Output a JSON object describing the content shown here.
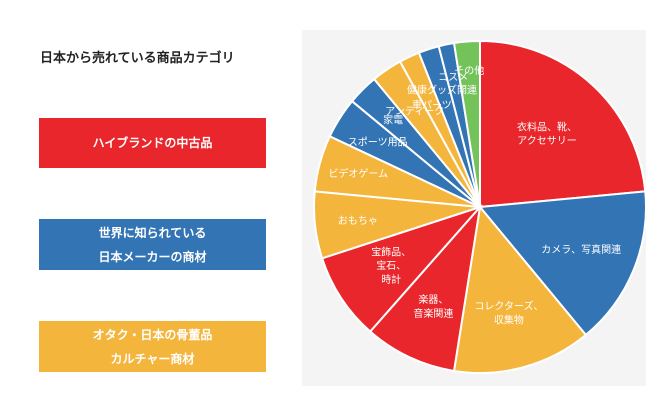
{
  "title": "日本から売れている商品カテゴリ",
  "legend_boxes": [
    {
      "lines": [
        "ハイブランドの中古品"
      ],
      "color": "#e8262b"
    },
    {
      "lines": [
        "世界に知られている",
        "日本メーカーの商材"
      ],
      "color": "#3374b4"
    },
    {
      "lines": [
        "オタク・日本の骨董品",
        "カルチャー商材"
      ],
      "color": "#f4b53c"
    }
  ],
  "chart_data": {
    "type": "pie",
    "title": "",
    "start_angle_deg": 0,
    "direction": "clockwise",
    "slices": [
      {
        "label": [
          "衣料品、靴、",
          "アクセサリー"
        ],
        "value": 23.5,
        "color": "#e8262b"
      },
      {
        "label": [
          "カメラ、写真関連"
        ],
        "value": 15.5,
        "color": "#3374b4"
      },
      {
        "label": [
          "コレクターズ、",
          "収集物"
        ],
        "value": 13.5,
        "color": "#f4b53c"
      },
      {
        "label": [
          "楽器、",
          "音楽関連"
        ],
        "value": 9.0,
        "color": "#e8262b"
      },
      {
        "label": [
          "宝飾品、",
          "宝石、",
          "時計"
        ],
        "value": 8.5,
        "color": "#e8262b"
      },
      {
        "label": [
          "おもちゃ"
        ],
        "value": 6.5,
        "color": "#f4b53c"
      },
      {
        "label": [
          "ビデオゲーム"
        ],
        "value": 5.5,
        "color": "#f4b53c"
      },
      {
        "label": [
          "スポーツ用品"
        ],
        "value": 4.0,
        "color": "#3374b4"
      },
      {
        "label": [
          "家電"
        ],
        "value": 3.0,
        "color": "#3374b4"
      },
      {
        "label": [
          "アンティーク"
        ],
        "value": 3.0,
        "color": "#f4b53c"
      },
      {
        "label": [
          "車パーツ"
        ],
        "value": 2.0,
        "color": "#f4b53c"
      },
      {
        "label": [
          "健康グッズ関連"
        ],
        "value": 2.0,
        "color": "#3374b4"
      },
      {
        "label": [
          "コスメ"
        ],
        "value": 1.5,
        "color": "#3374b4"
      },
      {
        "label": [
          "その他"
        ],
        "value": 2.5,
        "color": "#74c25a"
      }
    ]
  }
}
